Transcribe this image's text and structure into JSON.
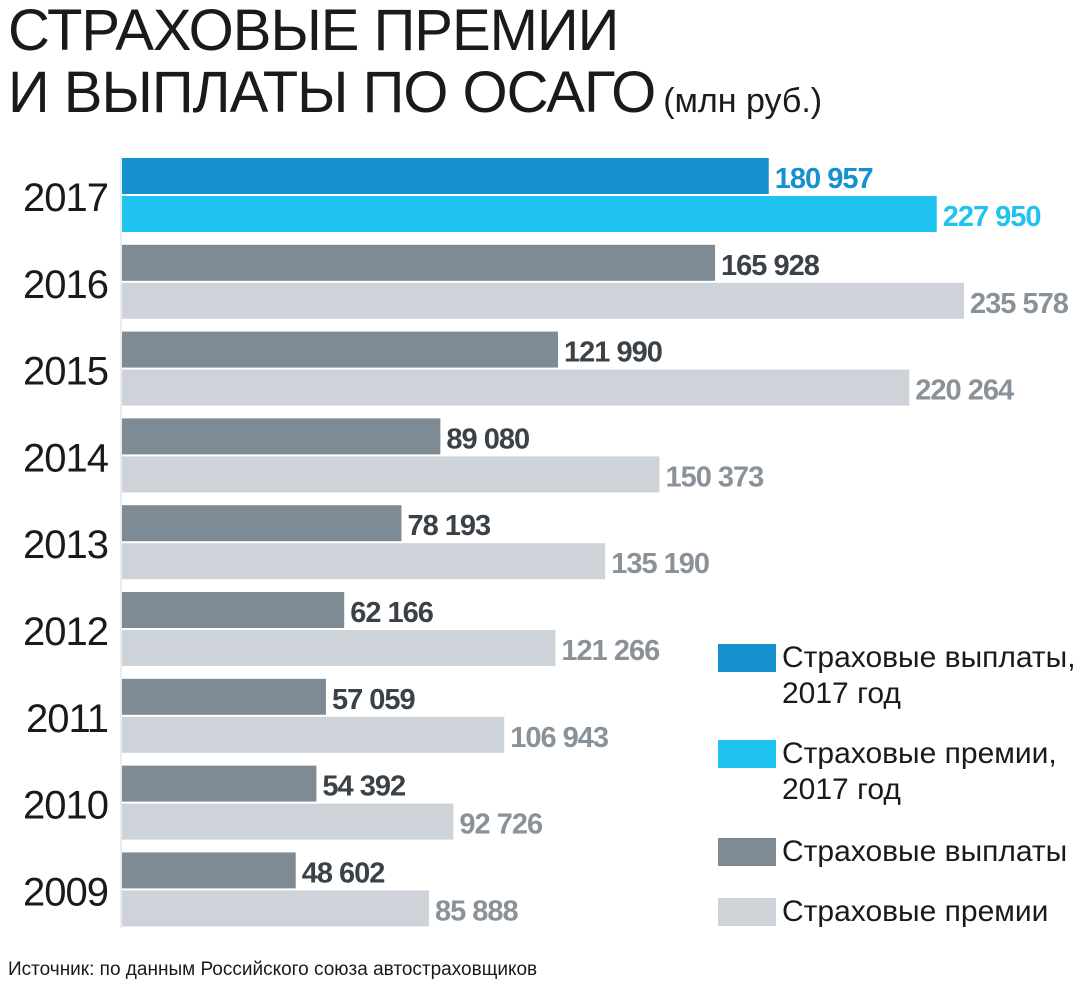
{
  "title": {
    "line1": "СТРАХОВЫЕ ПРЕМИИ",
    "line2": "И ВЫПЛАТЫ ПО ОСАГО",
    "unit": "(млн руб.)"
  },
  "source": "Источник: по данным Российского союза автостраховщиков",
  "colors": {
    "payouts_2017": "#1591d0",
    "premiums_2017": "#1ec3ef",
    "payouts": "#7f8b94",
    "premiums": "#cdd3d8",
    "payouts_label": "#3a4147",
    "premiums_label": "#8a9299",
    "text": "#1a1a1a"
  },
  "legend": [
    {
      "label": "Страховые выплаты,\n2017 год",
      "color": "#1591d0"
    },
    {
      "label": "Страховые премии,\n2017 год",
      "color": "#1ec3ef"
    },
    {
      "label": "Страховые выплаты",
      "color": "#7f8b94"
    },
    {
      "label": "Страховые премии",
      "color": "#cdd3d8"
    }
  ],
  "chart_data": {
    "type": "bar",
    "orientation": "horizontal",
    "categories": [
      "2017",
      "2016",
      "2015",
      "2014",
      "2013",
      "2012",
      "2011",
      "2010",
      "2009"
    ],
    "series": [
      {
        "name": "Страховые выплаты",
        "values": [
          180957,
          165928,
          121990,
          89080,
          78193,
          62166,
          57059,
          54392,
          48602
        ],
        "labels": [
          "180 957",
          "165 928",
          "121 990",
          "89 080",
          "78 193",
          "62 166",
          "57 059",
          "54 392",
          "48 602"
        ]
      },
      {
        "name": "Страховые премии",
        "values": [
          227950,
          235578,
          220264,
          150373,
          135190,
          121266,
          106943,
          92726,
          85888
        ],
        "labels": [
          "227 950",
          "235 578",
          "220 264",
          "150 373",
          "135 190",
          "121 266",
          "106 943",
          "92 726",
          "85 888"
        ]
      }
    ],
    "highlight_category": "2017",
    "xlim": [
      0,
      235578
    ],
    "grid": false,
    "legend_position": "bottom-right"
  }
}
